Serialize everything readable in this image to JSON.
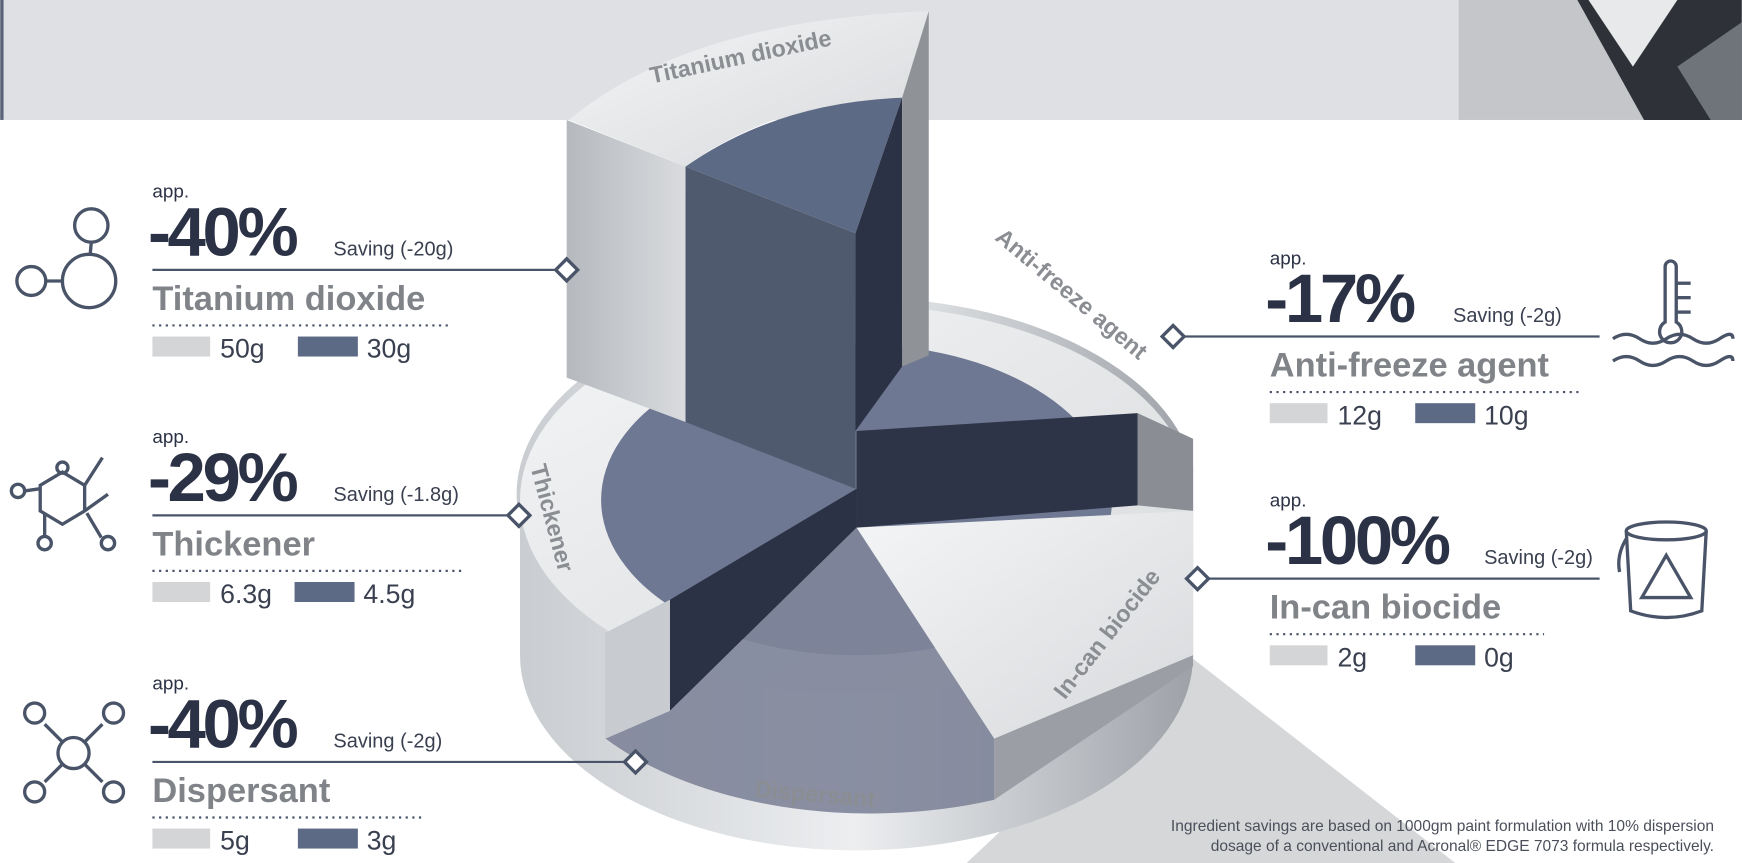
{
  "items": [
    {
      "app": "app.",
      "percent": "-40%",
      "saving": "Saving (-20g)",
      "name": "Titanium dioxide",
      "before": "50g",
      "after": "30g"
    },
    {
      "app": "app.",
      "percent": "-29%",
      "saving": "Saving (-1.8g)",
      "name": "Thickener",
      "before": "6.3g",
      "after": "4.5g"
    },
    {
      "app": "app.",
      "percent": "-40%",
      "saving": "Saving (-2g)",
      "name": "Dispersant",
      "before": "5g",
      "after": "3g"
    },
    {
      "app": "app.",
      "percent": "-17%",
      "saving": "Saving (-2g)",
      "name": "Anti-freeze agent",
      "before": "12g",
      "after": "10g"
    },
    {
      "app": "app.",
      "percent": "-100%",
      "saving": "Saving (-2g)",
      "name": "In-can biocide",
      "before": "2g",
      "after": "0g"
    }
  ],
  "footnote": [
    "Ingredient savings are based on 1000gm paint formulation with 10% dispersion",
    "dosage of a conventional and Acronal® EDGE 7073 formula respectively."
  ]
}
